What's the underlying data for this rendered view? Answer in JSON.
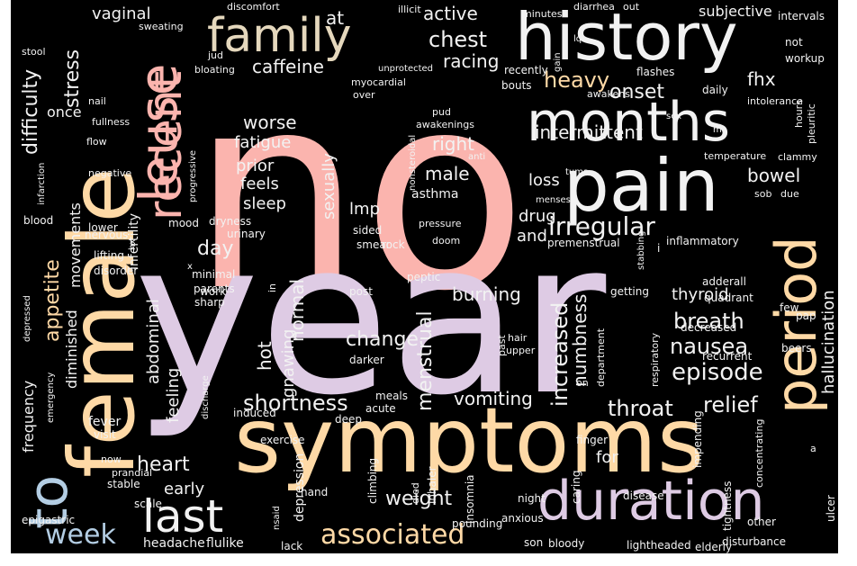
{
  "palette": {
    "background": "#000000",
    "pink": "#fbb4ae",
    "lavender": "#decbe4",
    "peach": "#fed9a6",
    "blue": "#b3cde3",
    "green": "#ccebc5",
    "tan": "#e5d8bd",
    "yellow": "#ffffcc",
    "white": "#f2f2f2"
  },
  "words": [
    {
      "text": "no",
      "color": "pink"
    },
    {
      "text": "year",
      "color": "lavender"
    },
    {
      "text": "symptoms",
      "color": "peach"
    },
    {
      "text": "female",
      "color": "peach"
    },
    {
      "text": "pain",
      "color": "white"
    },
    {
      "text": "history",
      "color": "white"
    },
    {
      "text": "months",
      "color": "white"
    },
    {
      "text": "duration",
      "color": "lavender"
    },
    {
      "text": "period",
      "color": "peach"
    },
    {
      "text": "family",
      "color": "tan"
    },
    {
      "text": "leuse",
      "color": "pink"
    },
    {
      "text": "recent",
      "color": "pink"
    },
    {
      "text": "to",
      "color": "blue"
    },
    {
      "text": "last",
      "color": "white"
    },
    {
      "text": "week",
      "color": "blue"
    },
    {
      "text": "associated",
      "color": "peach"
    },
    {
      "text": "irregular",
      "color": "white"
    },
    {
      "text": "episode",
      "color": "white"
    },
    {
      "text": "nausea",
      "color": "white"
    },
    {
      "text": "breath",
      "color": "white"
    },
    {
      "text": "shortness",
      "color": "white"
    },
    {
      "text": "heavy",
      "color": "peach"
    },
    {
      "text": "relief",
      "color": "white"
    },
    {
      "text": "throat",
      "color": "white"
    },
    {
      "text": "change",
      "color": "white"
    },
    {
      "text": "weight",
      "color": "white"
    },
    {
      "text": "heart",
      "color": "white"
    },
    {
      "text": "day",
      "color": "white"
    },
    {
      "text": "appetite",
      "color": "peach"
    },
    {
      "text": "difficulty",
      "color": "white"
    },
    {
      "text": "stress",
      "color": "white"
    },
    {
      "text": "vaginal",
      "color": "white"
    },
    {
      "text": "active",
      "color": "white"
    },
    {
      "text": "chest",
      "color": "white"
    },
    {
      "text": "racing",
      "color": "white"
    },
    {
      "text": "caffeine",
      "color": "white"
    },
    {
      "text": "at",
      "color": "white"
    },
    {
      "text": "onset",
      "color": "white"
    },
    {
      "text": "fhx",
      "color": "white"
    },
    {
      "text": "intermittent",
      "color": "white"
    },
    {
      "text": "bowel",
      "color": "white"
    },
    {
      "text": "worse",
      "color": "white"
    },
    {
      "text": "fatigue",
      "color": "white"
    },
    {
      "text": "prior",
      "color": "white"
    },
    {
      "text": "feels",
      "color": "white"
    },
    {
      "text": "sleep",
      "color": "white"
    },
    {
      "text": "male",
      "color": "white"
    },
    {
      "text": "right",
      "color": "white"
    },
    {
      "text": "loss",
      "color": "white"
    },
    {
      "text": "sexually",
      "color": "white"
    },
    {
      "text": "lmp",
      "color": "white"
    },
    {
      "text": "drug",
      "color": "white"
    },
    {
      "text": "and",
      "color": "white"
    },
    {
      "text": "normal",
      "color": "white"
    },
    {
      "text": "hot",
      "color": "white"
    },
    {
      "text": "feeling",
      "color": "white"
    },
    {
      "text": "abdominal",
      "color": "white"
    },
    {
      "text": "diminished",
      "color": "white"
    },
    {
      "text": "movements",
      "color": "white"
    },
    {
      "text": "frequency",
      "color": "white"
    },
    {
      "text": "once",
      "color": "white"
    },
    {
      "text": "gnawing",
      "color": "white"
    },
    {
      "text": "menstrual",
      "color": "white"
    },
    {
      "text": "burning",
      "color": "white"
    },
    {
      "text": "increased",
      "color": "white"
    },
    {
      "text": "numbness",
      "color": "white"
    },
    {
      "text": "vomiting",
      "color": "white"
    },
    {
      "text": "thyroid",
      "color": "white"
    },
    {
      "text": "hallucination",
      "color": "white"
    },
    {
      "text": "early",
      "color": "white"
    },
    {
      "text": "for",
      "color": "white"
    },
    {
      "text": "headache",
      "color": "white"
    },
    {
      "text": "depression",
      "color": "white"
    },
    {
      "text": "subjective",
      "color": "white"
    },
    {
      "text": "asthma",
      "color": "white"
    },
    {
      "text": "infertility",
      "color": "white"
    },
    {
      "text": "fever",
      "color": "white"
    },
    {
      "text": "flulike",
      "color": "white"
    },
    {
      "text": "lack",
      "color": "white"
    },
    {
      "text": "elderly",
      "color": "white"
    },
    {
      "text": "disturbance",
      "color": "white"
    },
    {
      "text": "lightheaded",
      "color": "white"
    },
    {
      "text": "bloody",
      "color": "white"
    },
    {
      "text": "pounding",
      "color": "white"
    },
    {
      "text": "anxious",
      "color": "white"
    },
    {
      "text": "night",
      "color": "white"
    },
    {
      "text": "disease",
      "color": "white"
    },
    {
      "text": "other",
      "color": "white"
    },
    {
      "text": "epigastric",
      "color": "white"
    },
    {
      "text": "stable",
      "color": "white"
    },
    {
      "text": "scale",
      "color": "white"
    },
    {
      "text": "hand",
      "color": "white"
    },
    {
      "text": "climbing",
      "color": "white"
    },
    {
      "text": "insomnia",
      "color": "white"
    },
    {
      "text": "inhaler",
      "color": "white"
    },
    {
      "text": "died",
      "color": "white"
    },
    {
      "text": "son",
      "color": "white"
    },
    {
      "text": "caring",
      "color": "white"
    },
    {
      "text": "finger",
      "color": "white"
    },
    {
      "text": "impending",
      "color": "white"
    },
    {
      "text": "tightness",
      "color": "white"
    },
    {
      "text": "ulcer",
      "color": "white"
    },
    {
      "text": "concentrating",
      "color": "white"
    },
    {
      "text": "exercise",
      "color": "white"
    },
    {
      "text": "visit",
      "color": "white"
    },
    {
      "text": "now",
      "color": "white"
    },
    {
      "text": "prandial",
      "color": "white"
    },
    {
      "text": "emergency",
      "color": "white"
    },
    {
      "text": "discharge",
      "color": "white"
    },
    {
      "text": "induced",
      "color": "white"
    },
    {
      "text": "deep",
      "color": "white"
    },
    {
      "text": "acute",
      "color": "white"
    },
    {
      "text": "meals",
      "color": "white"
    },
    {
      "text": "darker",
      "color": "white"
    },
    {
      "text": "past",
      "color": "white"
    },
    {
      "text": "hair",
      "color": "white"
    },
    {
      "text": "upper",
      "color": "white"
    },
    {
      "text": "department",
      "color": "white"
    },
    {
      "text": "respiratory",
      "color": "white"
    },
    {
      "text": "recurrent",
      "color": "white"
    },
    {
      "text": "decreased",
      "color": "white"
    },
    {
      "text": "few",
      "color": "white"
    },
    {
      "text": "pap",
      "color": "white"
    },
    {
      "text": "beers",
      "color": "white"
    },
    {
      "text": "quadrant",
      "color": "white"
    },
    {
      "text": "adderall",
      "color": "white"
    },
    {
      "text": "getting",
      "color": "white"
    },
    {
      "text": "inflammatory",
      "color": "white"
    },
    {
      "text": "premenstrual",
      "color": "white"
    },
    {
      "text": "i",
      "color": "white"
    },
    {
      "text": "peptic",
      "color": "white"
    },
    {
      "text": "rock",
      "color": "white"
    },
    {
      "text": "sided",
      "color": "white"
    },
    {
      "text": "smear",
      "color": "white"
    },
    {
      "text": "post",
      "color": "white"
    },
    {
      "text": "sharp",
      "color": "white"
    },
    {
      "text": "work",
      "color": "white"
    },
    {
      "text": "minimal",
      "color": "white"
    },
    {
      "text": "parents",
      "color": "white"
    },
    {
      "text": "x",
      "color": "white"
    },
    {
      "text": "disorder",
      "color": "white"
    },
    {
      "text": "lifting",
      "color": "white"
    },
    {
      "text": "nervous",
      "color": "white"
    },
    {
      "text": "lower",
      "color": "white"
    },
    {
      "text": "blood",
      "color": "white"
    },
    {
      "text": "mood",
      "color": "white"
    },
    {
      "text": "dryness",
      "color": "white"
    },
    {
      "text": "urinary",
      "color": "white"
    },
    {
      "text": "doom",
      "color": "white"
    },
    {
      "text": "pressure",
      "color": "white"
    },
    {
      "text": "nonsteroidal",
      "color": "white"
    },
    {
      "text": "anti",
      "color": "white"
    },
    {
      "text": "menses",
      "color": "white"
    },
    {
      "text": "tums",
      "color": "white"
    },
    {
      "text": "stabbing",
      "color": "white"
    },
    {
      "text": "sob",
      "color": "white"
    },
    {
      "text": "due",
      "color": "white"
    },
    {
      "text": "clammy",
      "color": "white"
    },
    {
      "text": "temperature",
      "color": "white"
    },
    {
      "text": "hours",
      "color": "white"
    },
    {
      "text": "pleuritic",
      "color": "white"
    },
    {
      "text": "intolerance",
      "color": "white"
    },
    {
      "text": "mi",
      "color": "white"
    },
    {
      "text": "sex",
      "color": "white"
    },
    {
      "text": "awakens",
      "color": "white"
    },
    {
      "text": "flashes",
      "color": "white"
    },
    {
      "text": "daily",
      "color": "white"
    },
    {
      "text": "workup",
      "color": "white"
    },
    {
      "text": "not",
      "color": "white"
    },
    {
      "text": "intervals",
      "color": "white"
    },
    {
      "text": "recently",
      "color": "white"
    },
    {
      "text": "bouts",
      "color": "white"
    },
    {
      "text": "gain",
      "color": "white"
    },
    {
      "text": "lq",
      "color": "white"
    },
    {
      "text": "minutes",
      "color": "white"
    },
    {
      "text": "diarrhea",
      "color": "white"
    },
    {
      "text": "out",
      "color": "white"
    },
    {
      "text": "pud",
      "color": "white"
    },
    {
      "text": "awakenings",
      "color": "white"
    },
    {
      "text": "over",
      "color": "white"
    },
    {
      "text": "myocardial",
      "color": "white"
    },
    {
      "text": "unprotected",
      "color": "white"
    },
    {
      "text": "illicit",
      "color": "white"
    },
    {
      "text": "discomfort",
      "color": "white"
    },
    {
      "text": "jud",
      "color": "white"
    },
    {
      "text": "bloating",
      "color": "white"
    },
    {
      "text": "sweating",
      "color": "white"
    },
    {
      "text": "stool",
      "color": "white"
    },
    {
      "text": "nail",
      "color": "white"
    },
    {
      "text": "fullness",
      "color": "white"
    },
    {
      "text": "flow",
      "color": "white"
    },
    {
      "text": "infarction",
      "color": "white"
    },
    {
      "text": "negative",
      "color": "white"
    },
    {
      "text": "progressive",
      "color": "white"
    },
    {
      "text": "hx",
      "color": "white"
    },
    {
      "text": "depressed",
      "color": "white"
    },
    {
      "text": "in",
      "color": "white"
    },
    {
      "text": "on",
      "color": "white"
    },
    {
      "text": "a",
      "color": "white"
    },
    {
      "text": "nsaid",
      "color": "white"
    }
  ]
}
